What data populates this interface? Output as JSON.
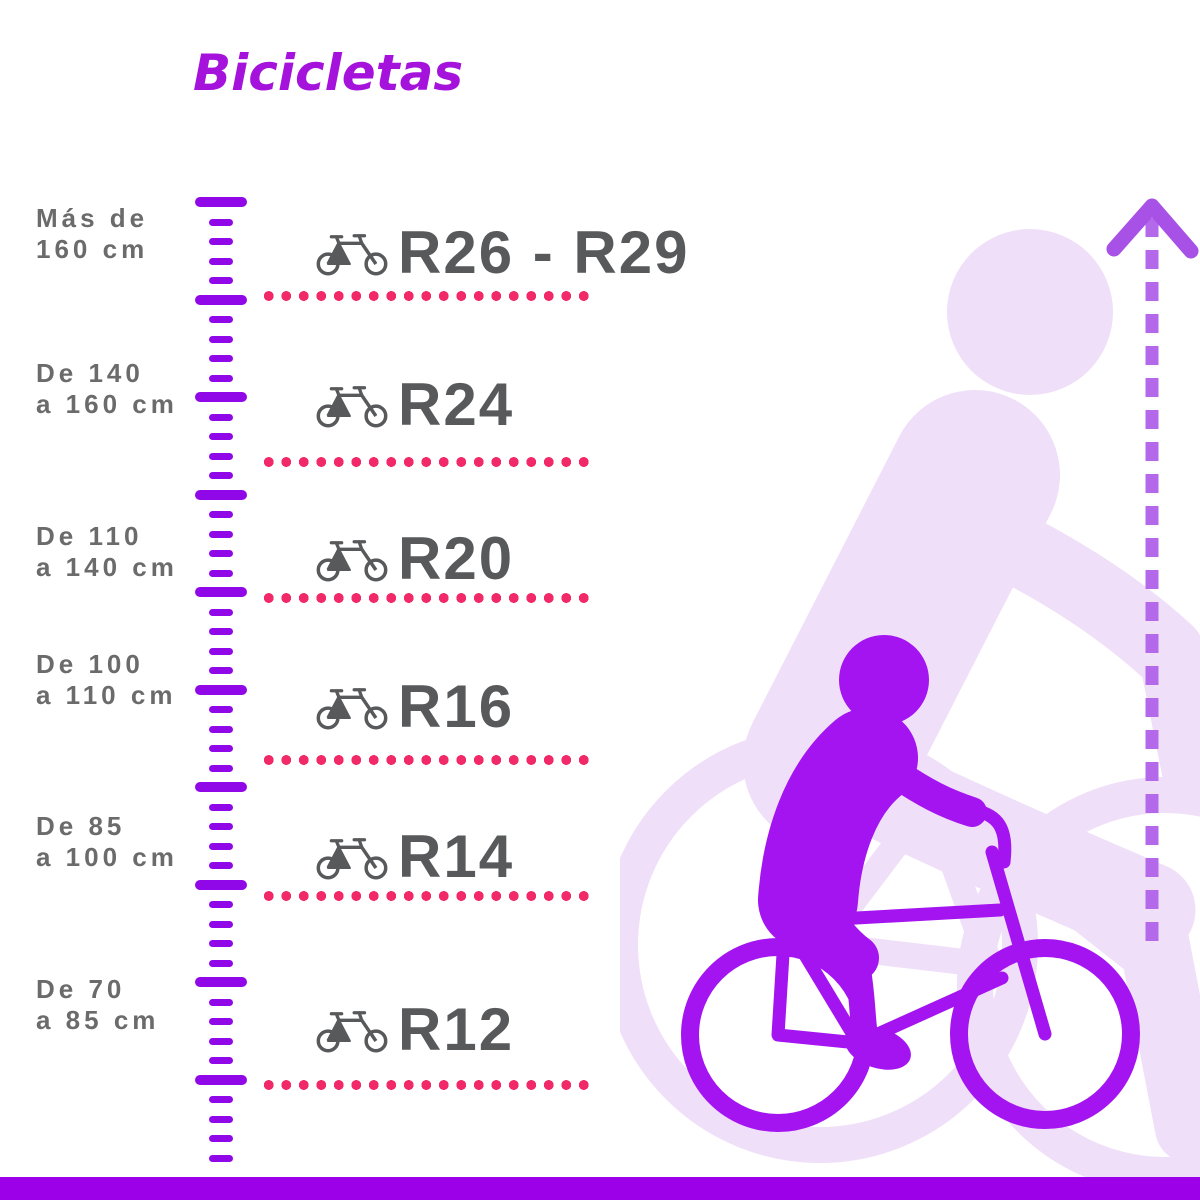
{
  "title": {
    "text": "Bicicletas"
  },
  "colors": {
    "title_purple": "#A512DC",
    "ruler_purple": "#9108E8",
    "text_gray": "#6B6B6B",
    "label_dark": "#58595B",
    "dot_pink": "#F22968",
    "rider_purple": "#A414F0",
    "silhouette_lavender": "#F0DFF8",
    "arrow_purple": "#B468EA",
    "arrow_head_purple": "#A851E6",
    "bottom_bar_purple": "#9B00E8"
  },
  "ruler": {
    "tick_count": 50,
    "major_every": 5,
    "tick_spacing": 19.5
  },
  "rows": [
    {
      "height_line1": "Más de",
      "height_line2": "160 cm",
      "wheel_size": "R26 - R29",
      "icon": "bicycle-icon"
    },
    {
      "height_line1": "De 140",
      "height_line2": "a 160 cm",
      "wheel_size": "R24",
      "icon": "bicycle-icon"
    },
    {
      "height_line1": "De 110",
      "height_line2": "a 140 cm",
      "wheel_size": "R20",
      "icon": "bicycle-icon"
    },
    {
      "height_line1": "De 100",
      "height_line2": "a 110 cm",
      "wheel_size": "R16",
      "icon": "bicycle-icon"
    },
    {
      "height_line1": "De 85",
      "height_line2": "a 100 cm",
      "wheel_size": "R14",
      "icon": "bicycle-icon"
    },
    {
      "height_line1": "De 70",
      "height_line2": "a 85 cm",
      "wheel_size": "R12",
      "icon": "bicycle-icon"
    }
  ],
  "illustration": {
    "foreground": "child-riding-bicycle",
    "background": "adult-riding-bicycle-silhouette",
    "arrow": "height-growth-dashed-arrow"
  }
}
